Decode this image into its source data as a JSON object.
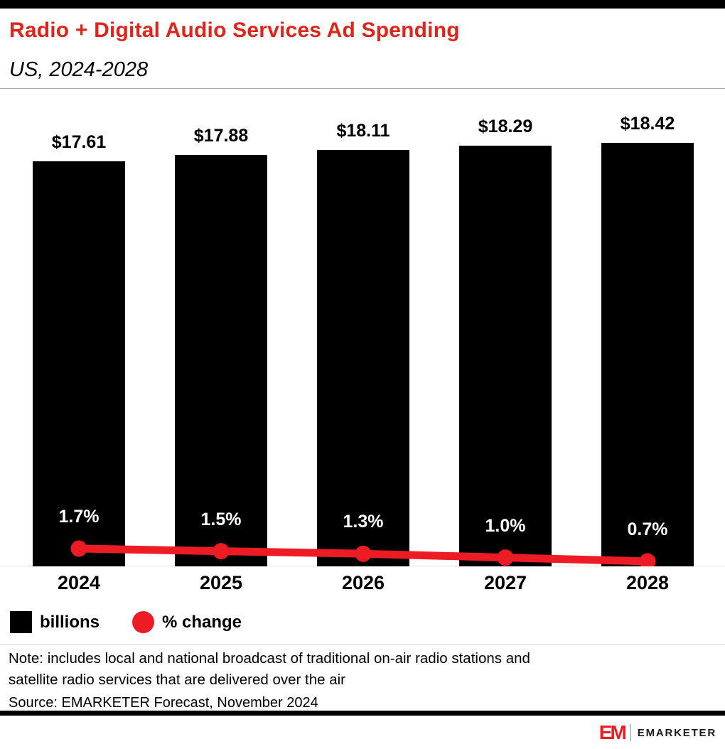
{
  "header": {
    "title": "Radio + Digital Audio Services Ad Spending",
    "subtitle": "US, 2024-2028"
  },
  "chart_data": {
    "type": "bar",
    "categories": [
      "2024",
      "2025",
      "2026",
      "2027",
      "2028"
    ],
    "series": [
      {
        "name": "billions",
        "type": "bar",
        "values": [
          17.61,
          17.88,
          18.11,
          18.29,
          18.42
        ],
        "labels": [
          "$17.61",
          "$17.88",
          "$18.11",
          "$18.29",
          "$18.42"
        ],
        "color": "#000000"
      },
      {
        "name": "% change",
        "type": "line",
        "values": [
          1.7,
          1.5,
          1.3,
          1.0,
          0.7
        ],
        "labels": [
          "1.7%",
          "1.5%",
          "1.3%",
          "1.0%",
          "0.7%"
        ],
        "color": "#ed1c24"
      }
    ],
    "legend": [
      {
        "label": "billions",
        "color": "#000000",
        "shape": "square"
      },
      {
        "label": "% change",
        "color": "#ed1c24",
        "shape": "circle"
      }
    ],
    "title": "Radio + Digital Audio Services Ad Spending",
    "subtitle": "US, 2024-2028",
    "xlabel": "",
    "ylabel": "",
    "ylim_bars": [
      0,
      19.5
    ],
    "grid": false,
    "axes_hidden": true,
    "legend_position": "bottom-left"
  },
  "notes": {
    "note": "Note: includes local and national broadcast of traditional on-air radio stations and\nsatellite radio services that are delivered over the air",
    "source": "Source: EMARKETER Forecast, November 2024"
  },
  "footer": {
    "logo_mark": "EM",
    "logo_text": "EMARKETER"
  },
  "colors": {
    "accent_red": "#e2231a",
    "chart_line_red": "#ed1c24",
    "bar_black": "#000000",
    "background": "#ffffff"
  }
}
